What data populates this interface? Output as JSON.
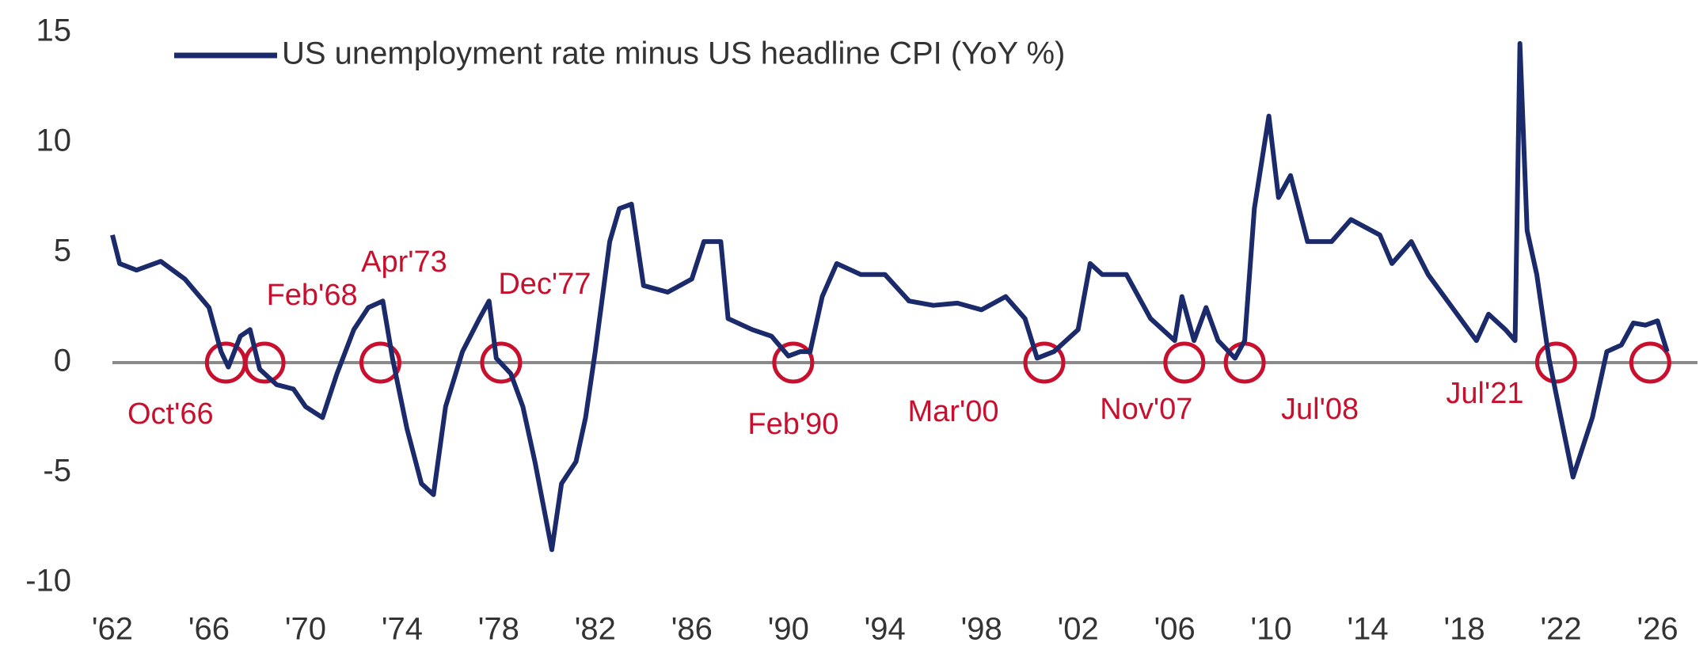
{
  "chart_data": {
    "type": "line",
    "legend": "top-left",
    "x": [
      1962.0,
      1962.3,
      1963,
      1964,
      1965,
      1966,
      1966.5,
      1966.8,
      1967.3,
      1967.7,
      1968.1,
      1968.8,
      1969.5,
      1970,
      1970.7,
      1971.3,
      1972,
      1972.6,
      1973.2,
      1973.6,
      1974.2,
      1974.8,
      1975.3,
      1975.8,
      1976.5,
      1977.2,
      1977.6,
      1977.9,
      1978.5,
      1979,
      1979.5,
      1980.2,
      1980.6,
      1981.2,
      1981.6,
      1982,
      1982.6,
      1983,
      1983.5,
      1984,
      1985,
      1985.5,
      1986,
      1986.5,
      1987.2,
      1987.5,
      1988.5,
      1989.3,
      1990,
      1990.5,
      1990.9,
      1991.4,
      1992,
      1993,
      1994,
      1995,
      1996,
      1997,
      1998,
      1999,
      1999.8,
      2000.3,
      2001,
      2002,
      2002.5,
      2003,
      2004,
      2005,
      2006,
      2006.3,
      2006.8,
      2007.3,
      2007.8,
      2008.5,
      2008.9,
      2009.3,
      2009.9,
      2010.3,
      2010.8,
      2011.5,
      2012.5,
      2013.3,
      2014.5,
      2015,
      2015.8,
      2016.5,
      2017.5,
      2018.5,
      2019,
      2019.7,
      2020.1,
      2020.3,
      2020.6,
      2021,
      2021.5,
      2022,
      2022.5,
      2023.3,
      2023.9,
      2024.5,
      2025,
      2025.5,
      2026,
      2026.4
    ],
    "series": [
      {
        "name": "US unemployment rate minus US headline CPI (YoY %)",
        "color": "#1b2a6b",
        "values": [
          5.8,
          4.5,
          4.2,
          4.6,
          3.8,
          2.5,
          0.5,
          -0.2,
          1.2,
          1.5,
          -0.3,
          -1.0,
          -1.2,
          -2,
          -2.5,
          -0.5,
          1.5,
          2.5,
          2.8,
          0.2,
          -3,
          -5.5,
          -6,
          -2,
          0.5,
          2,
          2.8,
          0.2,
          -0.5,
          -2,
          -4.5,
          -8.5,
          -5.5,
          -4.5,
          -2.5,
          0.5,
          5.5,
          7,
          7.2,
          3.5,
          3.2,
          3.5,
          3.8,
          5.5,
          5.5,
          2,
          1.5,
          1.2,
          0.3,
          0.5,
          0.5,
          3,
          4.5,
          4,
          4,
          2.8,
          2.6,
          2.7,
          2.4,
          3,
          2,
          0.2,
          0.5,
          1.5,
          4.5,
          4,
          4,
          2,
          1,
          3,
          1,
          2.5,
          1,
          0.2,
          1,
          7,
          11.2,
          7.5,
          8.5,
          5.5,
          5.5,
          6.5,
          5.8,
          4.5,
          5.5,
          4,
          2.5,
          1,
          2.2,
          1.5,
          1,
          14.5,
          6,
          4,
          0.2,
          -2.5,
          -5.2,
          -2.5,
          0.5,
          0.8,
          1.8,
          1.7,
          1.9,
          0.5
        ]
      }
    ],
    "xlim": [
      1962,
      2027
    ],
    "ylim": [
      -10,
      15
    ],
    "yticks": [
      -10,
      -5,
      0,
      5,
      10,
      15
    ],
    "xticks": [
      {
        "value": 1962,
        "label": "'62"
      },
      {
        "value": 1966,
        "label": "'66"
      },
      {
        "value": 1970,
        "label": "'70"
      },
      {
        "value": 1974,
        "label": "'74"
      },
      {
        "value": 1978,
        "label": "'78"
      },
      {
        "value": 1982,
        "label": "'82"
      },
      {
        "value": 1986,
        "label": "'86"
      },
      {
        "value": 1990,
        "label": "'90"
      },
      {
        "value": 1994,
        "label": "'94"
      },
      {
        "value": 1998,
        "label": "'98"
      },
      {
        "value": 2002,
        "label": "'02"
      },
      {
        "value": 2006,
        "label": "'06"
      },
      {
        "value": 2010,
        "label": "'10"
      },
      {
        "value": 2014,
        "label": "'14"
      },
      {
        "value": 2018,
        "label": "'18"
      },
      {
        "value": 2022,
        "label": "'22"
      },
      {
        "value": 2026,
        "label": "'26"
      }
    ],
    "annotation_color": "#c8102e",
    "annotations": [
      {
        "label": "Oct'66",
        "x": 1966.7,
        "y": 0
      },
      {
        "label": "Feb'68",
        "x": 1968.3,
        "y": 0
      },
      {
        "label": "Apr'73",
        "x": 1973.1,
        "y": 0
      },
      {
        "label": "Dec'77",
        "x": 1978.1,
        "y": 0
      },
      {
        "label": "Feb'90",
        "x": 1990.2,
        "y": 0
      },
      {
        "label": "Mar'00",
        "x": 2000.6,
        "y": 0
      },
      {
        "label": "Nov'07",
        "x": 2006.4,
        "y": 0
      },
      {
        "label": "Jul'08",
        "x": 2008.9,
        "y": 0
      },
      {
        "label": "Jul'21",
        "x": 2021.8,
        "y": 0
      },
      {
        "label": null,
        "x": 2025.7,
        "y": 0
      }
    ]
  }
}
